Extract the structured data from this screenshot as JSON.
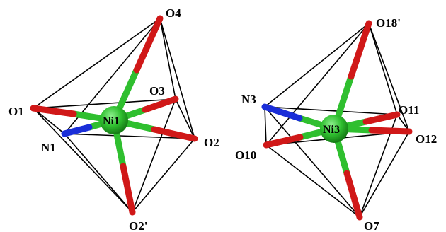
{
  "colors": {
    "nickel": "#2fbf2f",
    "oxygen": "#d01818",
    "nitrogen": "#1a2ed8",
    "edge": "#000000"
  },
  "labels": {
    "left": {
      "center": "Ni1",
      "o4": "O4",
      "o1": "O1",
      "o3": "O3",
      "n1": "N1",
      "o2": "O2",
      "o2p": "O2'"
    },
    "right": {
      "center": "Ni3",
      "o18p": "O18'",
      "n3": "N3",
      "o11": "O11",
      "o10": "O10",
      "o12": "O12",
      "o7": "O7"
    }
  }
}
